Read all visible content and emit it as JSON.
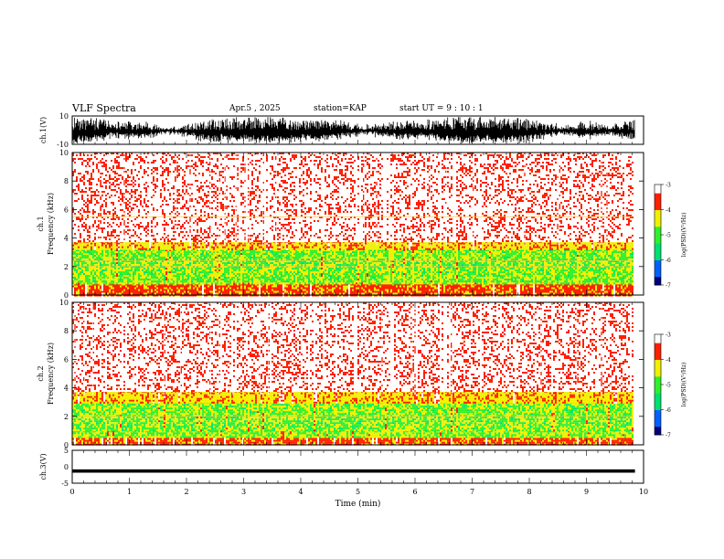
{
  "header": {
    "title": "VLF Spectra",
    "date": "Apr.5 , 2025",
    "station": "station=KAP",
    "start": "start UT = 9 : 10 : 1"
  },
  "chart_data": [
    {
      "type": "line",
      "title": "",
      "ylabel": "ch.1(V)",
      "xlabel": "",
      "xlim": [
        0,
        10
      ],
      "ylim": [
        -10,
        10
      ],
      "yticks": [
        "10",
        "-10"
      ],
      "series": [
        {
          "amplitude_range": [
            -10,
            10
          ]
        }
      ]
    },
    {
      "type": "heatmap",
      "ylabel": "ch.1 Frequency (kHz)",
      "xlim": [
        0,
        10
      ],
      "ylim": [
        0,
        10
      ],
      "data_end_min": 9.8,
      "yticks": [
        "0",
        "2",
        "4",
        "6",
        "8",
        "10"
      ],
      "colorbar": {
        "label": "log(PSD)(V²/Hz)",
        "range": [
          -7,
          -3
        ],
        "ticks": [
          "-3",
          "-4",
          "-5",
          "-6",
          "-7"
        ],
        "colors": [
          "#00007a",
          "#0060ff",
          "#00e070",
          "#2ef02e",
          "#f0f000",
          "#ff2000",
          "#ffffff"
        ]
      },
      "bands": [
        {
          "f": [
            0.0,
            0.8
          ],
          "level": -3.8
        },
        {
          "f": [
            0.8,
            1.0
          ],
          "level": -4.9
        },
        {
          "f": [
            1.0,
            3.2
          ],
          "level": -5.0
        },
        {
          "f": [
            3.2,
            3.8
          ],
          "level": -4.2
        },
        {
          "f": [
            3.8,
            10.0
          ],
          "level": -3.4
        }
      ],
      "lines_khz": [
        2.0,
        2.4,
        5.5
      ]
    },
    {
      "type": "heatmap",
      "ylabel": "ch.2 Frequency (kHz)",
      "xlim": [
        0,
        10
      ],
      "ylim": [
        0,
        10
      ],
      "data_end_min": 9.8,
      "yticks": [
        "0",
        "2",
        "4",
        "6",
        "8",
        "10"
      ],
      "colorbar": {
        "label": "log(PSD)(V²/Hz)",
        "range": [
          -7,
          -3
        ],
        "ticks": [
          "-3",
          "-4",
          "-5",
          "-6",
          "-7"
        ],
        "colors": [
          "#00007a",
          "#0060ff",
          "#00e070",
          "#2ef02e",
          "#f0f000",
          "#ff2000",
          "#ffffff"
        ]
      },
      "bands": [
        {
          "f": [
            0.0,
            0.6
          ],
          "level": -3.8
        },
        {
          "f": [
            0.6,
            1.0
          ],
          "level": -4.9
        },
        {
          "f": [
            1.0,
            3.0
          ],
          "level": -5.0
        },
        {
          "f": [
            3.0,
            3.8
          ],
          "level": -4.2
        },
        {
          "f": [
            3.8,
            10.0
          ],
          "level": -3.4
        }
      ],
      "lines_khz": [
        2.0
      ]
    },
    {
      "type": "line",
      "ylabel": "ch.3(V)",
      "xlabel": "Time (min)",
      "xlim": [
        0,
        10
      ],
      "ylim": [
        -5,
        5
      ],
      "yticks": [
        "5",
        "0",
        "-5"
      ],
      "xticks": [
        "0",
        "1",
        "2",
        "3",
        "4",
        "5",
        "6",
        "7",
        "8",
        "9",
        "10"
      ],
      "series": [
        {
          "baseline": -1.3,
          "amplitude_range": [
            -1.8,
            -0.8
          ]
        }
      ]
    }
  ]
}
